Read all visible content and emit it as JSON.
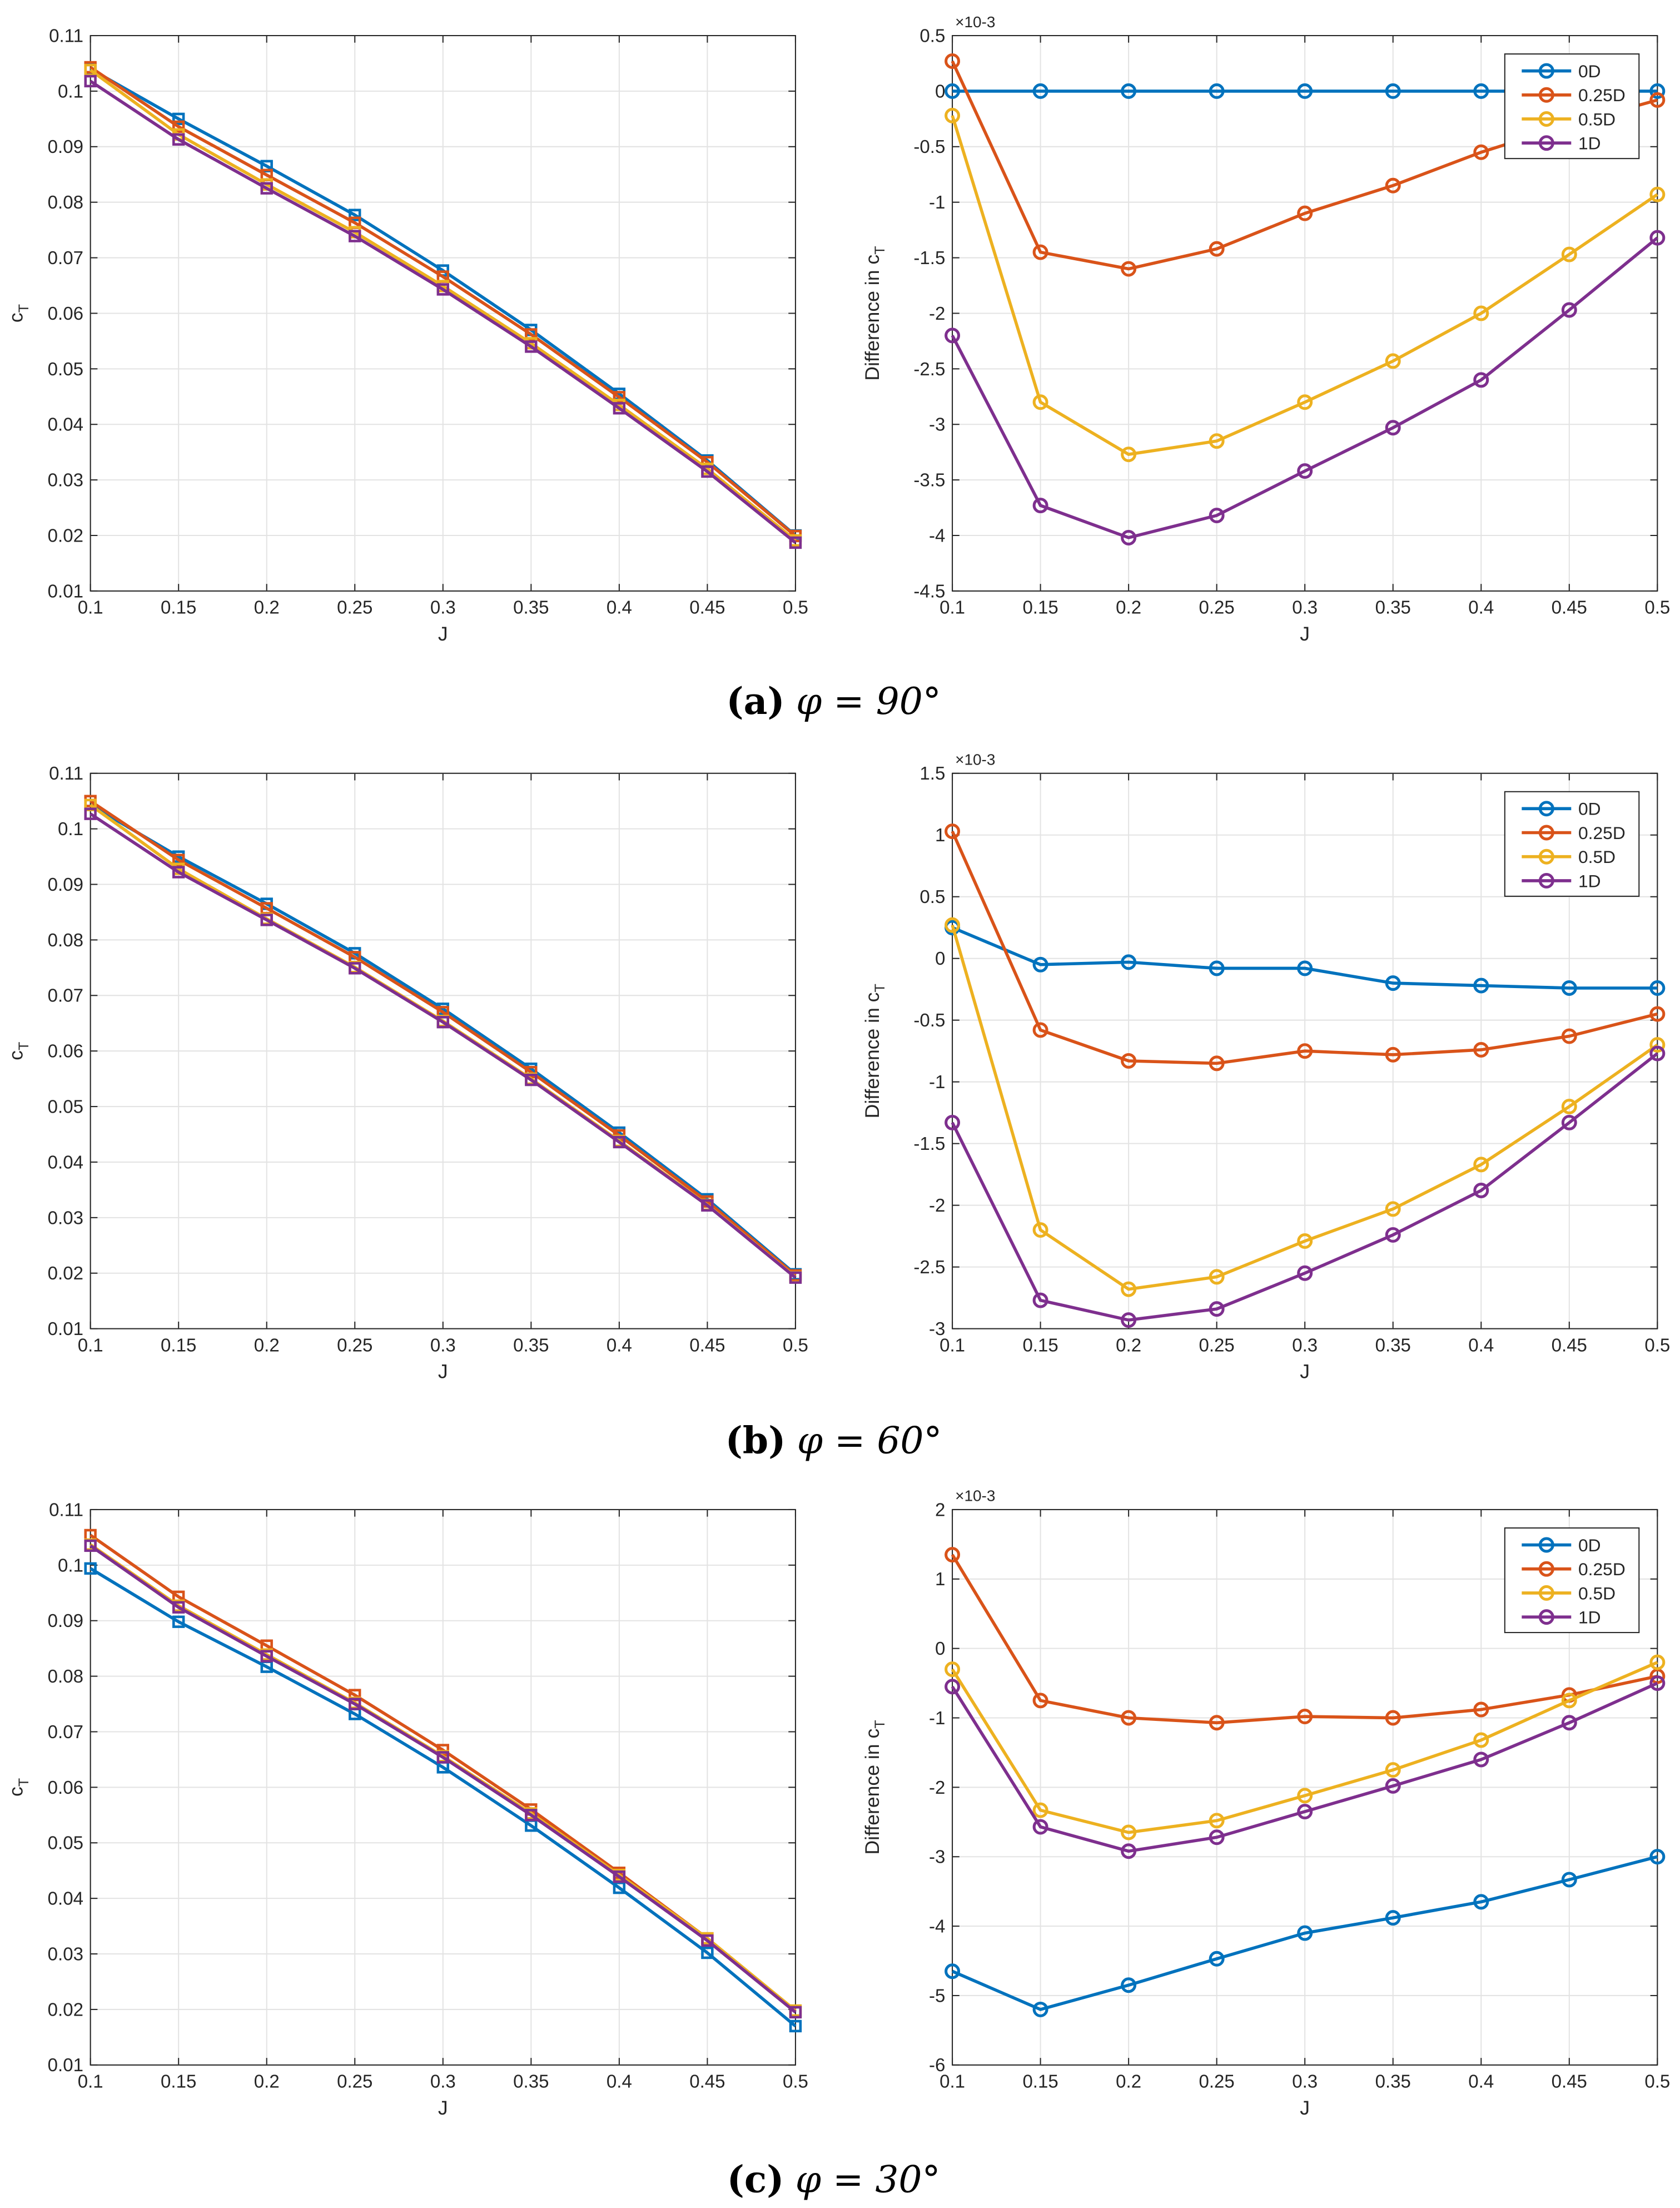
{
  "colors": {
    "0D": "#0072BD",
    "0.25D": "#D95319",
    "0.5D": "#EDB120",
    "1D": "#7E2F8E"
  },
  "chart_data": [
    {
      "panel": "a",
      "side": "left",
      "type": "line",
      "marker": "square",
      "caption": {
        "label": "(a)",
        "text": "φ = 90°"
      },
      "xlabel": "J",
      "ylabel": "cT",
      "xlim": [
        0.1,
        0.5
      ],
      "ylim": [
        0.01,
        0.11
      ],
      "grid": true,
      "x": [
        0.1,
        0.15,
        0.2,
        0.25,
        0.3,
        0.35,
        0.4,
        0.45,
        0.5
      ],
      "xticks": [
        "0.1",
        "0.15",
        "0.2",
        "0.25",
        "0.3",
        "0.35",
        "0.4",
        "0.45",
        "0.5"
      ],
      "yticks": [
        "0.01",
        "0.02",
        "0.03",
        "0.04",
        "0.05",
        "0.06",
        "0.07",
        "0.08",
        "0.09",
        "0.1",
        "0.11"
      ],
      "series": [
        {
          "name": "0D",
          "values": [
            0.104,
            0.095,
            0.0865,
            0.0777,
            0.0677,
            0.057,
            0.0455,
            0.0335,
            0.02
          ]
        },
        {
          "name": "0.25D",
          "values": [
            0.1043,
            0.0936,
            0.0849,
            0.0763,
            0.0666,
            0.0562,
            0.0449,
            0.0332,
            0.0199
          ]
        },
        {
          "name": "0.5D",
          "values": [
            0.1038,
            0.0922,
            0.0832,
            0.0746,
            0.0649,
            0.0546,
            0.0435,
            0.032,
            0.0191
          ]
        },
        {
          "name": "1D",
          "values": [
            0.1018,
            0.0913,
            0.0825,
            0.0739,
            0.0643,
            0.054,
            0.0429,
            0.0315,
            0.0187
          ]
        }
      ]
    },
    {
      "panel": "a",
      "side": "right",
      "type": "line",
      "marker": "circle",
      "xlabel": "J",
      "ylabel": "Difference in cT",
      "exponent": "×10-3",
      "xlim": [
        0.1,
        0.5
      ],
      "ylim": [
        -4.5,
        0.5
      ],
      "grid": true,
      "legend": "top-right",
      "x": [
        0.1,
        0.15,
        0.2,
        0.25,
        0.3,
        0.35,
        0.4,
        0.45,
        0.5
      ],
      "xticks": [
        "0.1",
        "0.15",
        "0.2",
        "0.25",
        "0.3",
        "0.35",
        "0.4",
        "0.45",
        "0.5"
      ],
      "yticks": [
        "-4.5",
        "-4",
        "-3.5",
        "-3",
        "-2.5",
        "-2",
        "-1.5",
        "-1",
        "-0.5",
        "0",
        "0.5"
      ],
      "series": [
        {
          "name": "0D",
          "values": [
            0,
            0,
            0,
            0,
            0,
            0,
            0,
            0,
            0
          ]
        },
        {
          "name": "0.25D",
          "values": [
            0.27,
            -1.45,
            -1.6,
            -1.42,
            -1.1,
            -0.85,
            -0.55,
            -0.3,
            -0.08
          ]
        },
        {
          "name": "0.5D",
          "values": [
            -0.22,
            -2.8,
            -3.27,
            -3.15,
            -2.8,
            -2.43,
            -2.0,
            -1.47,
            -0.93
          ]
        },
        {
          "name": "1D",
          "values": [
            -2.2,
            -3.73,
            -4.02,
            -3.82,
            -3.42,
            -3.03,
            -2.6,
            -1.97,
            -1.32
          ]
        }
      ]
    },
    {
      "panel": "b",
      "side": "left",
      "type": "line",
      "marker": "square",
      "caption": {
        "label": "(b)",
        "text": "φ = 60°"
      },
      "xlabel": "J",
      "ylabel": "cT",
      "xlim": [
        0.1,
        0.5
      ],
      "ylim": [
        0.01,
        0.11
      ],
      "grid": true,
      "x": [
        0.1,
        0.15,
        0.2,
        0.25,
        0.3,
        0.35,
        0.4,
        0.45,
        0.5
      ],
      "xticks": [
        "0.1",
        "0.15",
        "0.2",
        "0.25",
        "0.3",
        "0.35",
        "0.4",
        "0.45",
        "0.5"
      ],
      "yticks": [
        "0.01",
        "0.02",
        "0.03",
        "0.04",
        "0.05",
        "0.06",
        "0.07",
        "0.08",
        "0.09",
        "0.1",
        "0.11"
      ],
      "series": [
        {
          "name": "0D",
          "values": [
            0.1043,
            0.095,
            0.0865,
            0.0776,
            0.0676,
            0.0568,
            0.0453,
            0.0333,
            0.0198
          ]
        },
        {
          "name": "0.25D",
          "values": [
            0.105,
            0.0944,
            0.0857,
            0.0769,
            0.067,
            0.0562,
            0.0448,
            0.0329,
            0.0196
          ]
        },
        {
          "name": "0.5D",
          "values": [
            0.1043,
            0.0928,
            0.0838,
            0.0751,
            0.0654,
            0.055,
            0.0438,
            0.0323,
            0.0193
          ]
        },
        {
          "name": "1D",
          "values": [
            0.1027,
            0.0922,
            0.0836,
            0.0749,
            0.0652,
            0.0548,
            0.0436,
            0.0322,
            0.0192
          ]
        }
      ]
    },
    {
      "panel": "b",
      "side": "right",
      "type": "line",
      "marker": "circle",
      "xlabel": "J",
      "ylabel": "Difference in cT",
      "exponent": "×10-3",
      "xlim": [
        0.1,
        0.5
      ],
      "ylim": [
        -3,
        1.5
      ],
      "grid": true,
      "legend": "top-right",
      "x": [
        0.1,
        0.15,
        0.2,
        0.25,
        0.3,
        0.35,
        0.4,
        0.45,
        0.5
      ],
      "xticks": [
        "0.1",
        "0.15",
        "0.2",
        "0.25",
        "0.3",
        "0.35",
        "0.4",
        "0.45",
        "0.5"
      ],
      "yticks": [
        "-3",
        "-2.5",
        "-2",
        "-1.5",
        "-1",
        "-0.5",
        "0",
        "0.5",
        "1",
        "1.5"
      ],
      "series": [
        {
          "name": "0D",
          "values": [
            0.25,
            -0.05,
            -0.03,
            -0.08,
            -0.08,
            -0.2,
            -0.22,
            -0.24,
            -0.24
          ]
        },
        {
          "name": "0.25D",
          "values": [
            1.03,
            -0.58,
            -0.83,
            -0.85,
            -0.75,
            -0.78,
            -0.74,
            -0.63,
            -0.45
          ]
        },
        {
          "name": "0.5D",
          "values": [
            0.27,
            -2.2,
            -2.68,
            -2.58,
            -2.29,
            -2.03,
            -1.67,
            -1.2,
            -0.7
          ]
        },
        {
          "name": "1D",
          "values": [
            -1.33,
            -2.77,
            -2.93,
            -2.84,
            -2.55,
            -2.24,
            -1.88,
            -1.33,
            -0.77
          ]
        }
      ]
    },
    {
      "panel": "c",
      "side": "left",
      "type": "line",
      "marker": "square",
      "caption": {
        "label": "(c)",
        "text": "φ = 30°"
      },
      "xlabel": "J",
      "ylabel": "cT",
      "xlim": [
        0.1,
        0.5
      ],
      "ylim": [
        0.01,
        0.11
      ],
      "grid": true,
      "x": [
        0.1,
        0.15,
        0.2,
        0.25,
        0.3,
        0.35,
        0.4,
        0.45,
        0.5
      ],
      "xticks": [
        "0.1",
        "0.15",
        "0.2",
        "0.25",
        "0.3",
        "0.35",
        "0.4",
        "0.45",
        "0.5"
      ],
      "yticks": [
        "0.01",
        "0.02",
        "0.03",
        "0.04",
        "0.05",
        "0.06",
        "0.07",
        "0.08",
        "0.09",
        "0.1",
        "0.11"
      ],
      "series": [
        {
          "name": "0D",
          "values": [
            0.0994,
            0.0898,
            0.0817,
            0.0732,
            0.0636,
            0.0531,
            0.0419,
            0.0302,
            0.017
          ]
        },
        {
          "name": "0.25D",
          "values": [
            0.1054,
            0.0943,
            0.0855,
            0.0766,
            0.0667,
            0.056,
            0.0446,
            0.0328,
            0.0196
          ]
        },
        {
          "name": "0.5D",
          "values": [
            0.1037,
            0.0927,
            0.0839,
            0.0752,
            0.0656,
            0.0553,
            0.0442,
            0.0328,
            0.0198
          ]
        },
        {
          "name": "1D",
          "values": [
            0.1035,
            0.0924,
            0.0836,
            0.075,
            0.0654,
            0.055,
            0.0439,
            0.0324,
            0.0195
          ]
        }
      ]
    },
    {
      "panel": "c",
      "side": "right",
      "type": "line",
      "marker": "circle",
      "xlabel": "J",
      "ylabel": "Difference in cT",
      "exponent": "×10-3",
      "xlim": [
        0.1,
        0.5
      ],
      "ylim": [
        -6,
        2
      ],
      "grid": true,
      "legend": "top-right",
      "x": [
        0.1,
        0.15,
        0.2,
        0.25,
        0.3,
        0.35,
        0.4,
        0.45,
        0.5
      ],
      "xticks": [
        "0.1",
        "0.15",
        "0.2",
        "0.25",
        "0.3",
        "0.35",
        "0.4",
        "0.45",
        "0.5"
      ],
      "yticks": [
        "-6",
        "-5",
        "-4",
        "-3",
        "-2",
        "-1",
        "0",
        "1",
        "2"
      ],
      "series": [
        {
          "name": "0D",
          "values": [
            -4.65,
            -5.2,
            -4.85,
            -4.47,
            -4.1,
            -3.88,
            -3.65,
            -3.33,
            -3.0
          ]
        },
        {
          "name": "0.25D",
          "values": [
            1.35,
            -0.75,
            -1.0,
            -1.07,
            -0.98,
            -1.0,
            -0.88,
            -0.67,
            -0.4
          ]
        },
        {
          "name": "0.5D",
          "values": [
            -0.3,
            -2.33,
            -2.65,
            -2.48,
            -2.12,
            -1.75,
            -1.32,
            -0.75,
            -0.2
          ]
        },
        {
          "name": "1D",
          "values": [
            -0.55,
            -2.57,
            -2.92,
            -2.72,
            -2.35,
            -1.98,
            -1.6,
            -1.07,
            -0.5
          ]
        }
      ]
    }
  ]
}
